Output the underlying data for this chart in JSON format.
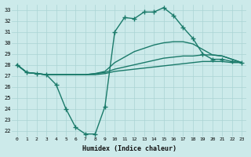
{
  "xlabel": "Humidex (Indice chaleur)",
  "xlim": [
    -0.5,
    23.5
  ],
  "ylim": [
    21.5,
    33.5
  ],
  "xticks": [
    0,
    1,
    2,
    3,
    4,
    5,
    6,
    7,
    8,
    9,
    10,
    11,
    12,
    13,
    14,
    15,
    16,
    17,
    18,
    19,
    20,
    21,
    22,
    23
  ],
  "yticks": [
    22,
    23,
    24,
    25,
    26,
    27,
    28,
    29,
    30,
    31,
    32,
    33
  ],
  "bg_color": "#cceaea",
  "grid_color": "#aad4d4",
  "line_color": "#1a7a6a",
  "lines": [
    {
      "x": [
        0,
        1,
        2,
        3,
        4,
        5,
        6,
        7,
        8,
        9,
        10,
        11,
        12,
        13,
        14,
        15,
        16,
        17,
        18,
        19,
        20,
        21,
        22,
        23
      ],
      "y": [
        28.0,
        27.3,
        27.2,
        27.1,
        26.2,
        24.0,
        22.3,
        21.7,
        21.7,
        24.2,
        31.0,
        32.3,
        32.2,
        32.8,
        32.8,
        33.2,
        32.5,
        31.4,
        30.4,
        29.0,
        28.5,
        28.5,
        28.3,
        28.2
      ],
      "marker": "+",
      "markersize": 4,
      "lw": 1.0,
      "ls": "-"
    },
    {
      "x": [
        0,
        1,
        2,
        3,
        4,
        5,
        6,
        7,
        8,
        9,
        10,
        11,
        12,
        13,
        14,
        15,
        16,
        17,
        18,
        19,
        20,
        21,
        22,
        23
      ],
      "y": [
        28.0,
        27.3,
        27.2,
        27.1,
        27.1,
        27.1,
        27.1,
        27.1,
        27.2,
        27.4,
        28.2,
        28.7,
        29.2,
        29.5,
        29.8,
        30.0,
        30.1,
        30.1,
        29.9,
        29.4,
        28.9,
        28.8,
        28.5,
        28.2
      ],
      "marker": null,
      "markersize": 0,
      "lw": 1.0,
      "ls": "-"
    },
    {
      "x": [
        0,
        1,
        2,
        3,
        4,
        5,
        6,
        7,
        8,
        9,
        10,
        11,
        12,
        13,
        14,
        15,
        16,
        17,
        18,
        19,
        20,
        21,
        22,
        23
      ],
      "y": [
        28.0,
        27.3,
        27.2,
        27.1,
        27.1,
        27.1,
        27.1,
        27.1,
        27.2,
        27.3,
        27.6,
        27.8,
        28.0,
        28.2,
        28.4,
        28.6,
        28.7,
        28.8,
        28.8,
        28.9,
        28.9,
        28.8,
        28.5,
        28.2
      ],
      "marker": null,
      "markersize": 0,
      "lw": 1.0,
      "ls": "-"
    },
    {
      "x": [
        0,
        1,
        2,
        3,
        4,
        5,
        6,
        7,
        8,
        9,
        10,
        11,
        12,
        13,
        14,
        15,
        16,
        17,
        18,
        19,
        20,
        21,
        22,
        23
      ],
      "y": [
        28.0,
        27.3,
        27.2,
        27.1,
        27.1,
        27.1,
        27.1,
        27.1,
        27.1,
        27.2,
        27.4,
        27.5,
        27.6,
        27.7,
        27.8,
        27.9,
        28.0,
        28.1,
        28.2,
        28.3,
        28.3,
        28.3,
        28.2,
        28.2
      ],
      "marker": null,
      "markersize": 0,
      "lw": 1.0,
      "ls": "-"
    }
  ]
}
